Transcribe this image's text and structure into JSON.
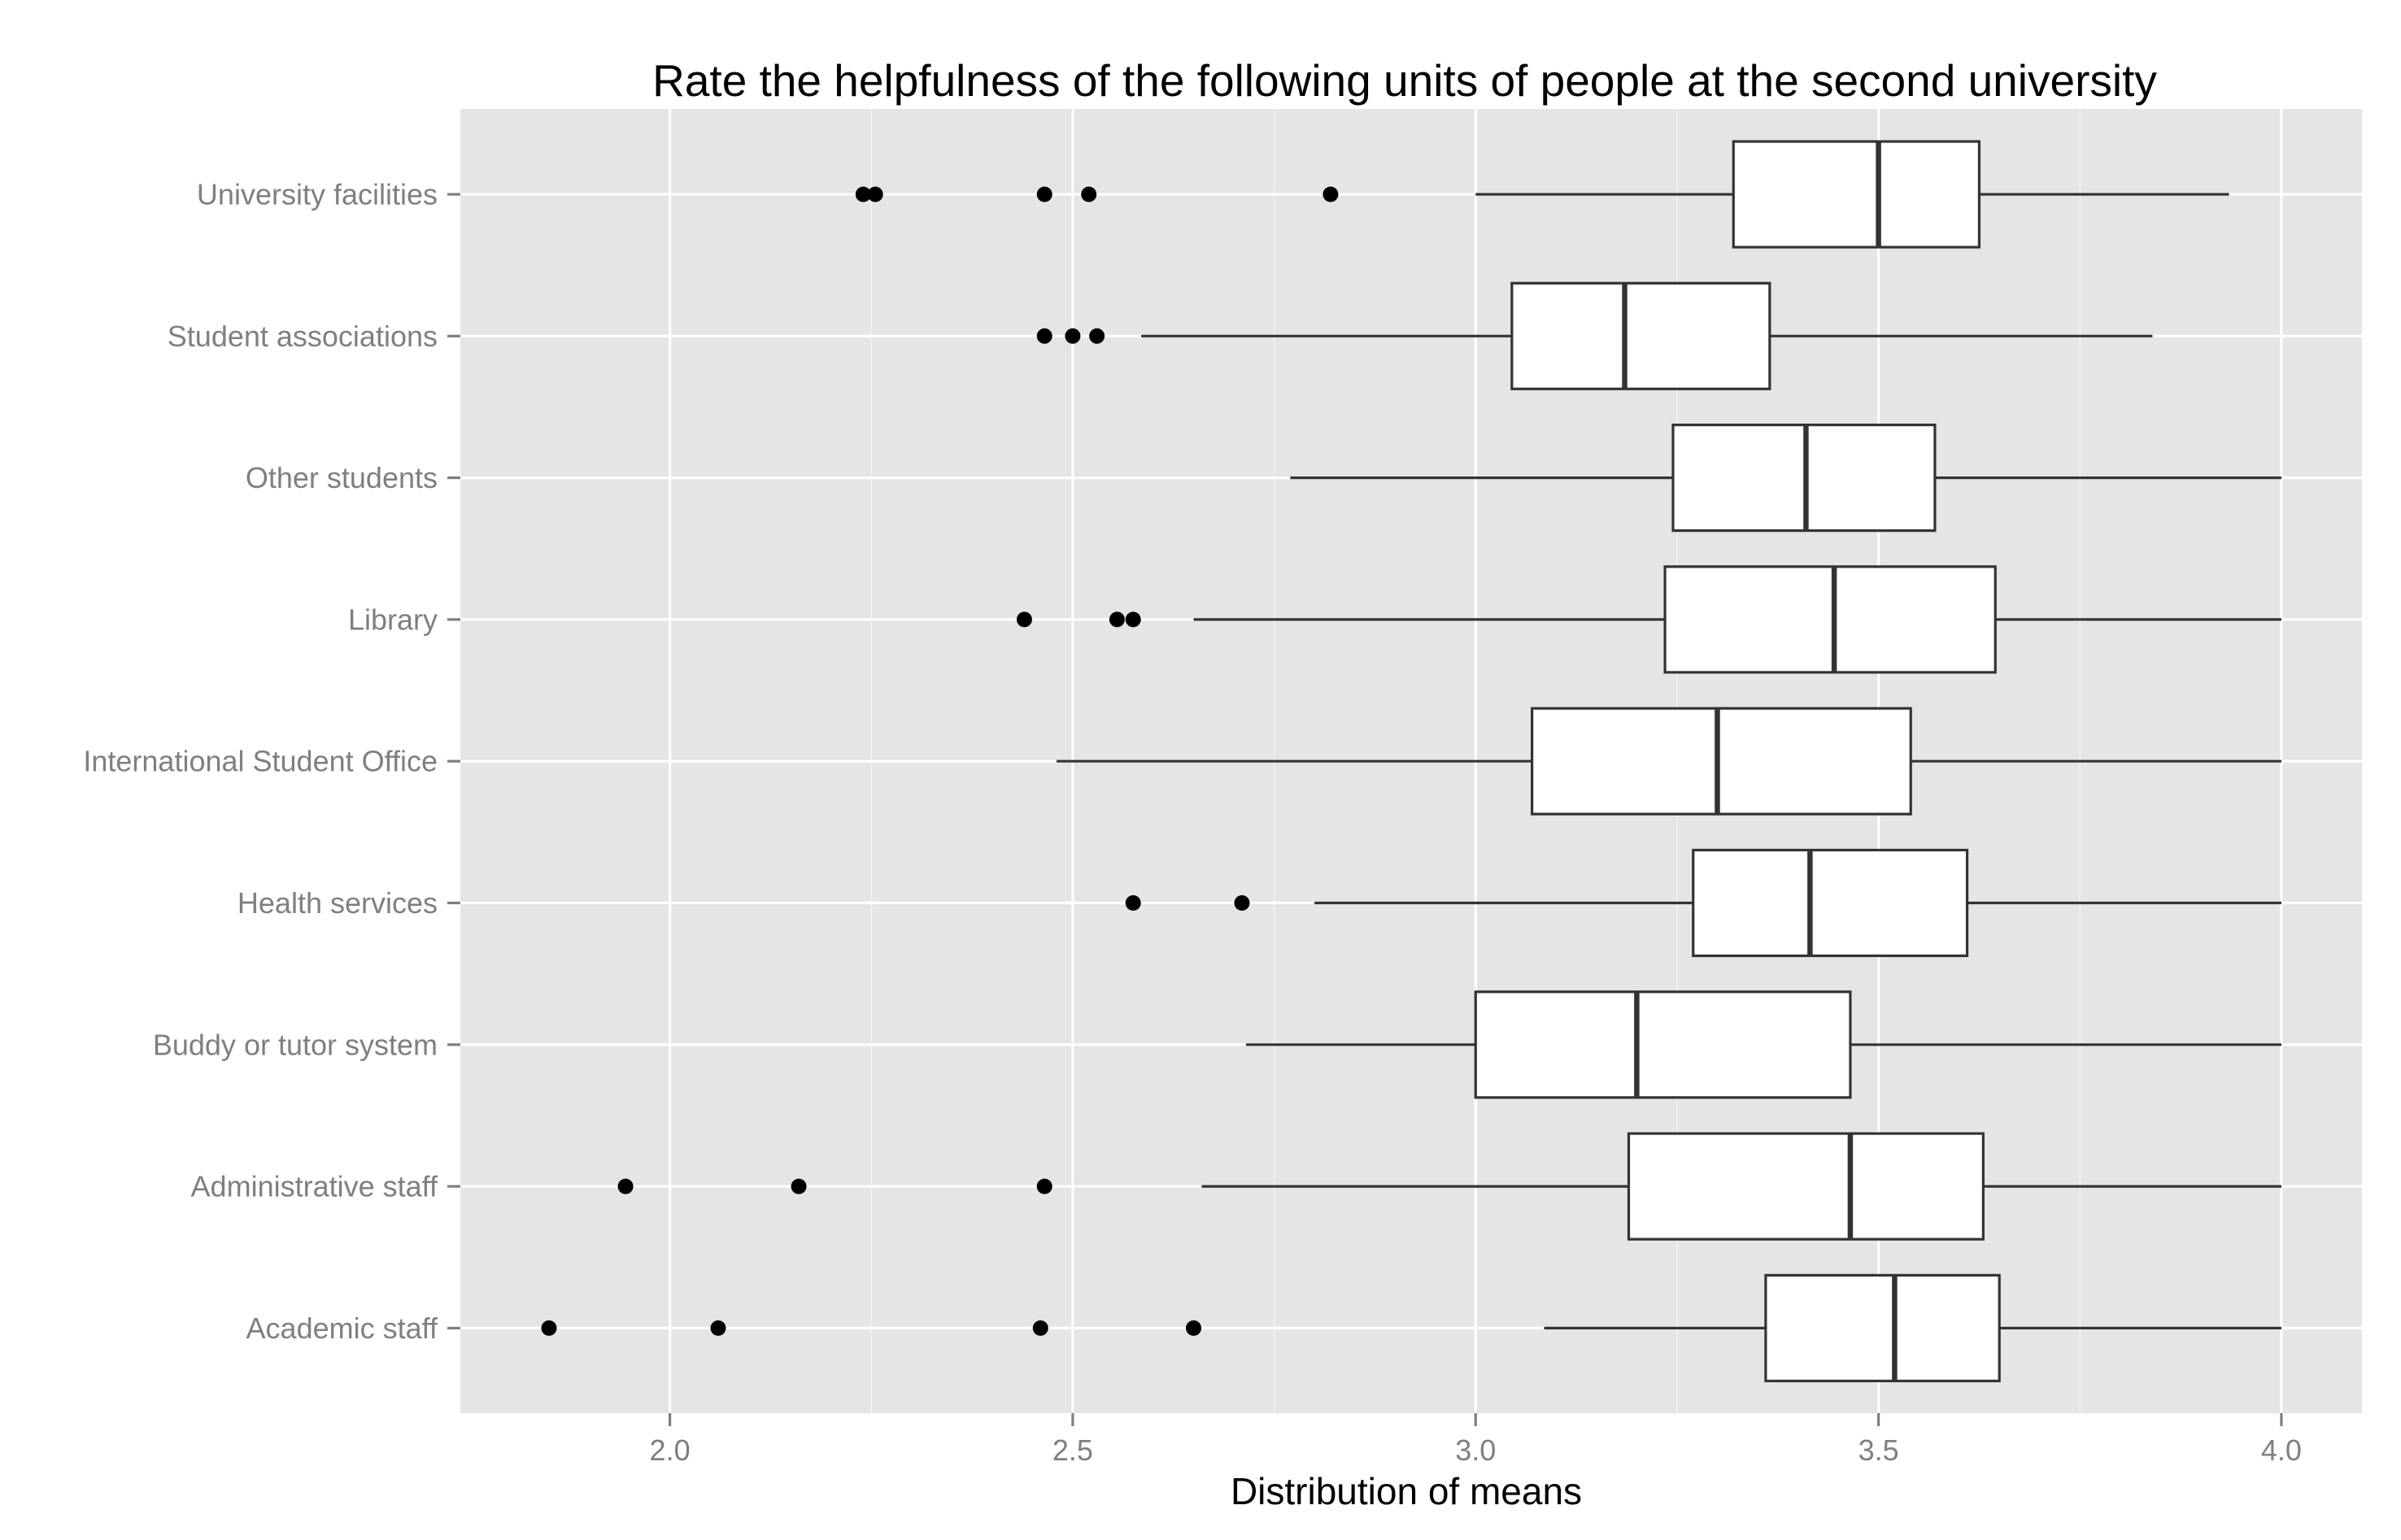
{
  "chart_data": {
    "type": "boxplot",
    "orientation": "horizontal",
    "title": "Rate the helpfulness of the following units of people at the second university",
    "xlabel": "Distribution of means",
    "ylabel": "",
    "xlim": [
      1.74,
      4.1
    ],
    "x_ticks": [
      2.0,
      2.5,
      3.0,
      3.5,
      4.0
    ],
    "x_tick_labels": [
      "2.0",
      "2.5",
      "3.0",
      "3.5",
      "4.0"
    ],
    "grid": true,
    "legend": "none",
    "colors": {
      "panel_background": "#e5e5e5",
      "grid_major": "#ffffff",
      "grid_minor": "#f2f2f2",
      "box_fill": "#ffffff",
      "box_line": "#333333",
      "outlier": "#000000",
      "tick_label": "#7f7f7f"
    },
    "categories": [
      "University facilities",
      "Student associations",
      "Other students",
      "Library",
      "International Student Office",
      "Health services",
      "Buddy or tutor system",
      "Administrative staff",
      "Academic staff"
    ],
    "boxes": [
      {
        "category": "University facilities",
        "whisker_low": 3.0,
        "q1": 3.32,
        "median": 3.5,
        "q3": 3.625,
        "whisker_high": 3.935,
        "outliers": [
          2.24,
          2.255,
          2.465,
          2.52,
          2.82
        ]
      },
      {
        "category": "Student associations",
        "whisker_low": 2.585,
        "q1": 3.045,
        "median": 3.185,
        "q3": 3.365,
        "whisker_high": 3.84,
        "outliers": [
          2.465,
          2.5,
          2.53
        ]
      },
      {
        "category": "Other students",
        "whisker_low": 2.77,
        "q1": 3.245,
        "median": 3.41,
        "q3": 3.57,
        "whisker_high": 4.0,
        "outliers": []
      },
      {
        "category": "Library",
        "whisker_low": 2.65,
        "q1": 3.235,
        "median": 3.445,
        "q3": 3.645,
        "whisker_high": 4.0,
        "outliers": [
          2.44,
          2.555,
          2.575
        ]
      },
      {
        "category": "International Student Office",
        "whisker_low": 2.48,
        "q1": 3.07,
        "median": 3.3,
        "q3": 3.54,
        "whisker_high": 4.0,
        "outliers": []
      },
      {
        "category": "Health services",
        "whisker_low": 2.8,
        "q1": 3.27,
        "median": 3.415,
        "q3": 3.61,
        "whisker_high": 4.0,
        "outliers": [
          2.575,
          2.71
        ]
      },
      {
        "category": "Buddy or tutor system",
        "whisker_low": 2.715,
        "q1": 3.0,
        "median": 3.2,
        "q3": 3.465,
        "whisker_high": 4.0,
        "outliers": []
      },
      {
        "category": "Administrative staff",
        "whisker_low": 2.66,
        "q1": 3.19,
        "median": 3.465,
        "q3": 3.63,
        "whisker_high": 4.0,
        "outliers": [
          1.945,
          2.16,
          2.465
        ]
      },
      {
        "category": "Academic staff",
        "whisker_low": 3.085,
        "q1": 3.36,
        "median": 3.52,
        "q3": 3.65,
        "whisker_high": 4.0,
        "outliers": [
          1.85,
          2.06,
          2.46,
          2.65
        ]
      }
    ]
  }
}
